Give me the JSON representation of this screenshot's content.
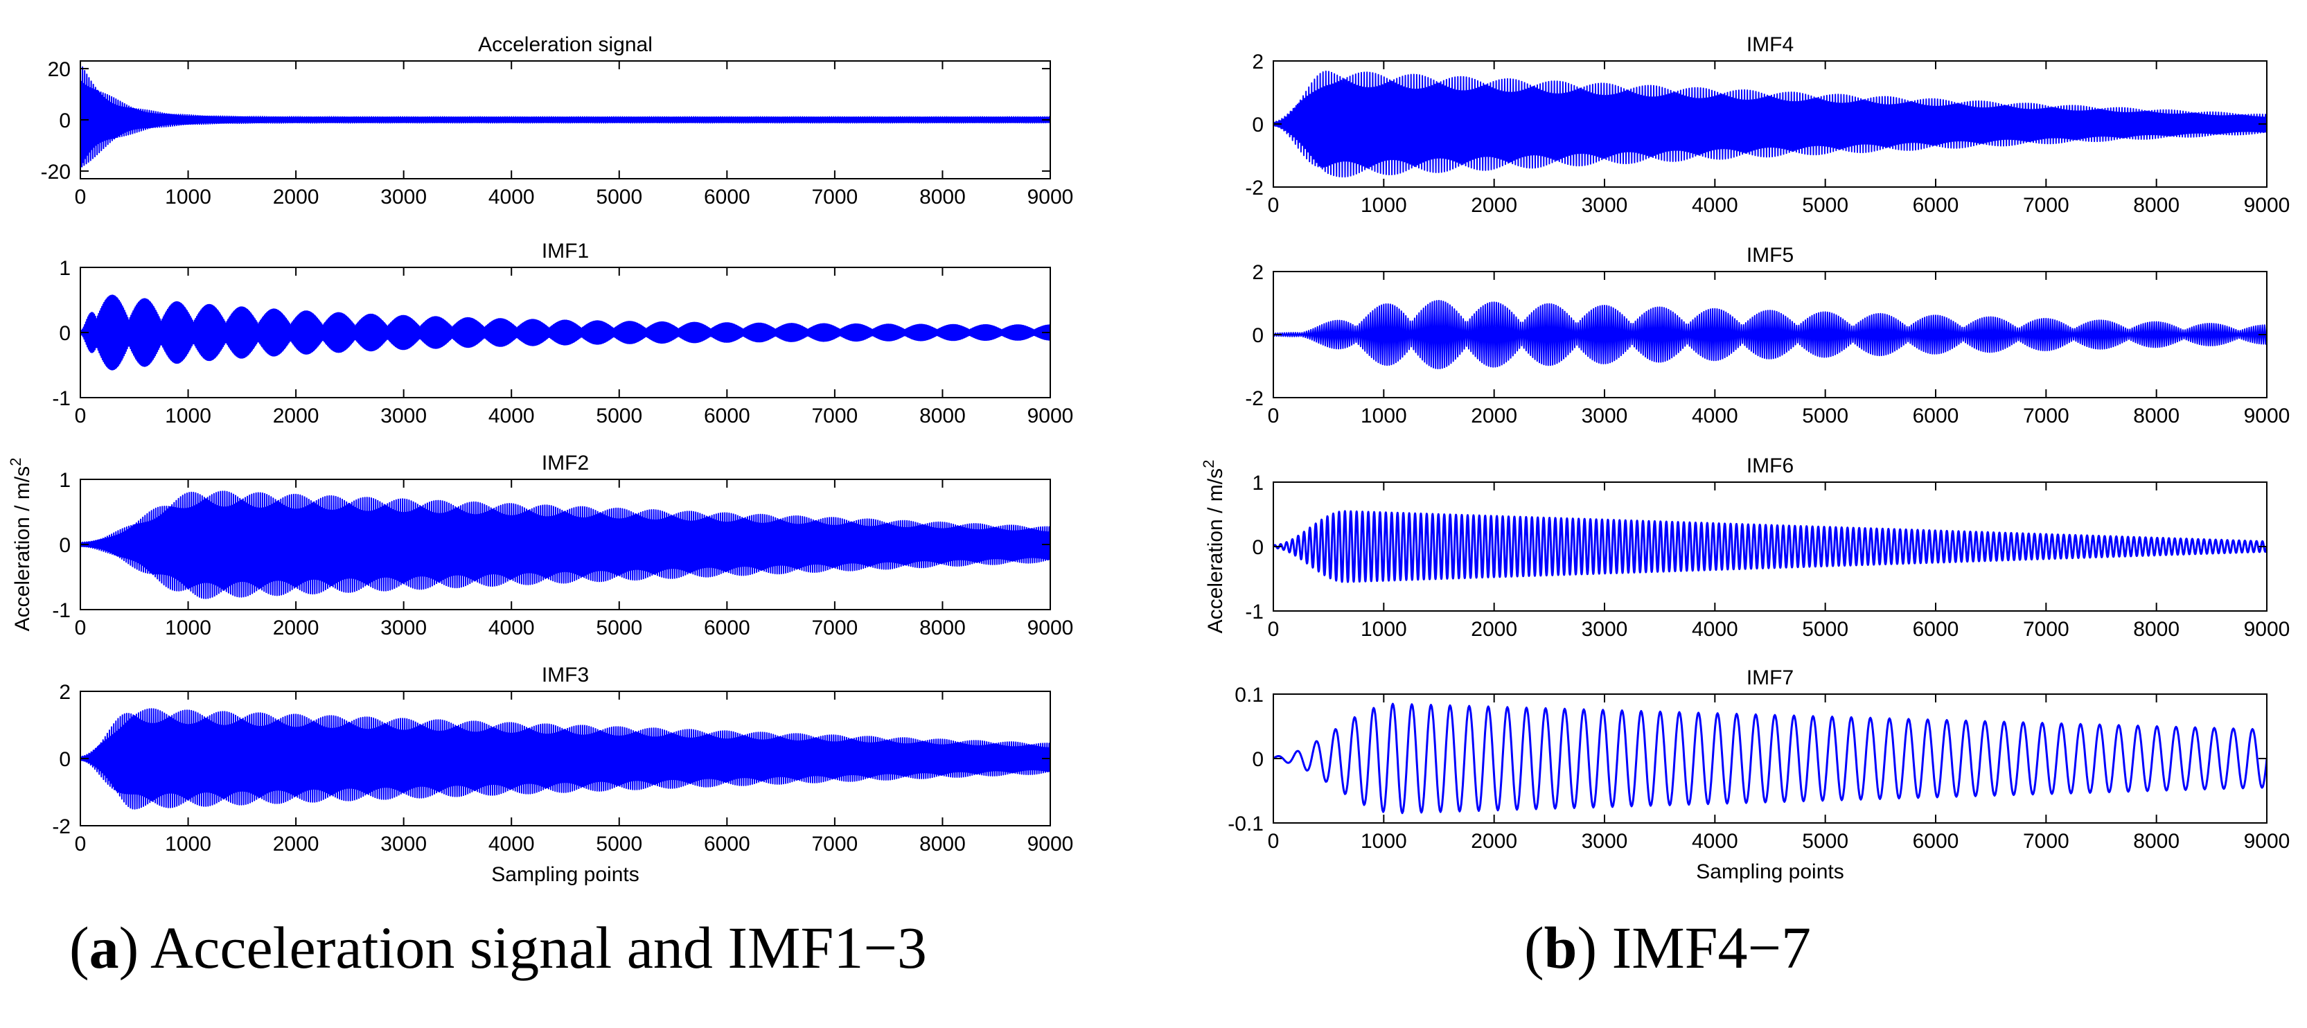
{
  "colors": {
    "signal": "#0000ff",
    "axis": "#000000",
    "background": "#ffffff"
  },
  "captions": {
    "a": {
      "open": "(",
      "letter": "a",
      "close": ")",
      "text": " Acceleration signal and IMF1−3"
    },
    "b": {
      "open": "(",
      "letter": "b",
      "close": ")",
      "text": " IMF4−7"
    }
  },
  "chart_data": [
    {
      "id": "a1",
      "type": "line",
      "title": "Acceleration signal",
      "xlabel": "",
      "ylabel": "",
      "xlim": [
        0,
        9000
      ],
      "ylim": [
        -23,
        23
      ],
      "xticks": [
        0,
        1000,
        2000,
        3000,
        4000,
        5000,
        6000,
        7000,
        8000,
        9000
      ],
      "yticks": [
        -20,
        0,
        20
      ],
      "grid": false,
      "series": [
        {
          "name": "Acceleration signal",
          "style": "dense",
          "peak_amplitude": 22,
          "peak_at": 0,
          "tail_amplitude": 1.2,
          "decay_constant": 300,
          "n_cycles": 900
        }
      ]
    },
    {
      "id": "a2",
      "type": "line",
      "title": "IMF1",
      "xlabel": "",
      "ylabel": "",
      "xlim": [
        0,
        9000
      ],
      "ylim": [
        -1,
        1
      ],
      "xticks": [
        0,
        1000,
        2000,
        3000,
        4000,
        5000,
        6000,
        7000,
        8000,
        9000
      ],
      "yticks": [
        -1,
        0,
        1
      ],
      "grid": false,
      "series": [
        {
          "name": "IMF1",
          "style": "beating",
          "peak_amplitude": 0.6,
          "peak_at": 150,
          "tail_amplitude": 0.1,
          "decay_constant": 2500,
          "beat_period": 300,
          "n_cycles": 900
        }
      ]
    },
    {
      "id": "a3",
      "type": "line",
      "title": "IMF2",
      "xlabel": "",
      "ylabel": "Acceleration / m/s2",
      "xlim": [
        0,
        9000
      ],
      "ylim": [
        -1,
        1
      ],
      "xticks": [
        0,
        1000,
        2000,
        3000,
        4000,
        5000,
        6000,
        7000,
        8000,
        9000
      ],
      "yticks": [
        -1,
        0,
        1
      ],
      "grid": false,
      "series": [
        {
          "name": "IMF2",
          "style": "dense",
          "peak_amplitude": 0.83,
          "peak_at": 1150,
          "tail_amplitude": 0.27,
          "n_cycles": 900
        }
      ]
    },
    {
      "id": "a4",
      "type": "line",
      "title": "IMF3",
      "xlabel": "Sampling points",
      "ylabel": "",
      "xlim": [
        0,
        9000
      ],
      "ylim": [
        -2,
        2
      ],
      "xticks": [
        0,
        1000,
        2000,
        3000,
        4000,
        5000,
        6000,
        7000,
        8000,
        9000
      ],
      "yticks": [
        -2,
        0,
        2
      ],
      "grid": false,
      "series": [
        {
          "name": "IMF3",
          "style": "dense",
          "peak_amplitude": 1.5,
          "peak_at": 500,
          "tail_amplitude": 0.45,
          "n_cycles": 900
        }
      ]
    },
    {
      "id": "b1",
      "type": "line",
      "title": "IMF4",
      "xlabel": "",
      "ylabel": "",
      "xlim": [
        0,
        9000
      ],
      "ylim": [
        -2,
        2
      ],
      "xticks": [
        0,
        1000,
        2000,
        3000,
        4000,
        5000,
        6000,
        7000,
        8000,
        9000
      ],
      "yticks": [
        -2,
        0,
        2
      ],
      "grid": false,
      "series": [
        {
          "name": "IMF4",
          "style": "dense",
          "peak_amplitude": 1.7,
          "peak_at": 500,
          "tail_amplitude": 0.3,
          "n_cycles": 700
        }
      ]
    },
    {
      "id": "b2",
      "type": "line",
      "title": "IMF5",
      "xlabel": "",
      "ylabel": "",
      "xlim": [
        0,
        9000
      ],
      "ylim": [
        -2,
        2
      ],
      "xticks": [
        0,
        1000,
        2000,
        3000,
        4000,
        5000,
        6000,
        7000,
        8000,
        9000
      ],
      "yticks": [
        -2,
        0,
        2
      ],
      "grid": false,
      "series": [
        {
          "name": "IMF5",
          "style": "beating",
          "peak_amplitude": 1.1,
          "peak_at": 1300,
          "tail_amplitude": 0.3,
          "beat_period": 500,
          "n_cycles": 450
        }
      ]
    },
    {
      "id": "b3",
      "type": "line",
      "title": "IMF6",
      "xlabel": "",
      "ylabel": "Acceleration / m/s2",
      "xlim": [
        0,
        9000
      ],
      "ylim": [
        -1,
        1
      ],
      "xticks": [
        0,
        1000,
        2000,
        3000,
        4000,
        5000,
        6000,
        7000,
        8000,
        9000
      ],
      "yticks": [
        -1,
        0,
        1
      ],
      "grid": false,
      "series": [
        {
          "name": "IMF6",
          "style": "oscillation",
          "peak_amplitude": 0.55,
          "peak_at": 650,
          "tail_amplitude": 0.08,
          "n_cycles": 170
        }
      ]
    },
    {
      "id": "b4",
      "type": "line",
      "title": "IMF7",
      "xlabel": "Sampling points",
      "ylabel": "",
      "xlim": [
        0,
        9000
      ],
      "ylim": [
        -0.1,
        0.1
      ],
      "xticks": [
        0,
        1000,
        2000,
        3000,
        4000,
        5000,
        6000,
        7000,
        8000,
        9000
      ],
      "yticks": [
        -0.1,
        0,
        0.1
      ],
      "grid": false,
      "series": [
        {
          "name": "IMF7",
          "style": "oscillation",
          "peak_amplitude": 0.085,
          "peak_at": 1100,
          "tail_amplitude": 0.045,
          "n_cycles": 52
        }
      ]
    }
  ]
}
